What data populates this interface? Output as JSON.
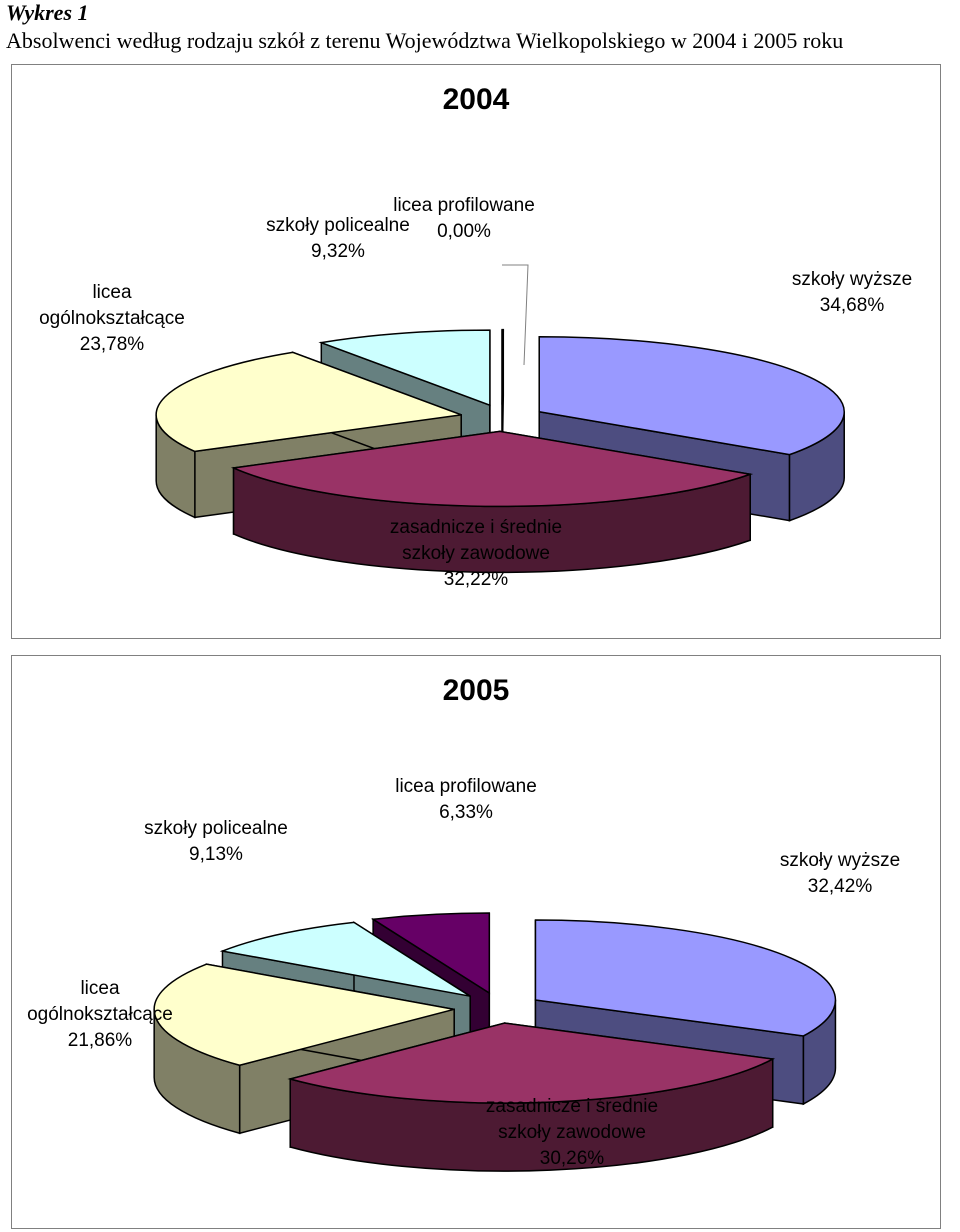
{
  "caption": {
    "label": "Wykres  1",
    "title": "Absolwenci według rodzaju szkół z terenu Województwa Wielkopolskiego w 2004 i 2005 roku"
  },
  "chart_data": [
    {
      "type": "pie",
      "title": "2004",
      "slices": [
        {
          "name": "szkoły wyższe",
          "value": 34.68,
          "label": "34,68%",
          "color": "#9999ff"
        },
        {
          "name": "zasadnicze i średnie szkoły zawodowe",
          "value": 32.22,
          "label": "32,22%",
          "color": "#993366"
        },
        {
          "name": "licea ogólnokształcące",
          "value": 23.78,
          "label": "23,78%",
          "color": "#ffffcc"
        },
        {
          "name": "szkoły policealne",
          "value": 9.32,
          "label": "9,32%",
          "color": "#ccffff"
        },
        {
          "name": "licea profilowane",
          "value": 0.0,
          "label": "0,00%",
          "color": "#660066"
        }
      ]
    },
    {
      "type": "pie",
      "title": "2005",
      "slices": [
        {
          "name": "szkoły wyższe",
          "value": 32.42,
          "label": "32,42%",
          "color": "#9999ff"
        },
        {
          "name": "zasadnicze i średnie szkoły zawodowe",
          "value": 30.26,
          "label": "30,26%",
          "color": "#993366"
        },
        {
          "name": "licea ogólnokształcące",
          "value": 21.86,
          "label": "21,86%",
          "color": "#ffffcc"
        },
        {
          "name": "szkoły policealne",
          "value": 9.13,
          "label": "9,13%",
          "color": "#ccffff"
        },
        {
          "name": "licea profilowane",
          "value": 6.33,
          "label": "6,33%",
          "color": "#660066"
        }
      ]
    }
  ]
}
